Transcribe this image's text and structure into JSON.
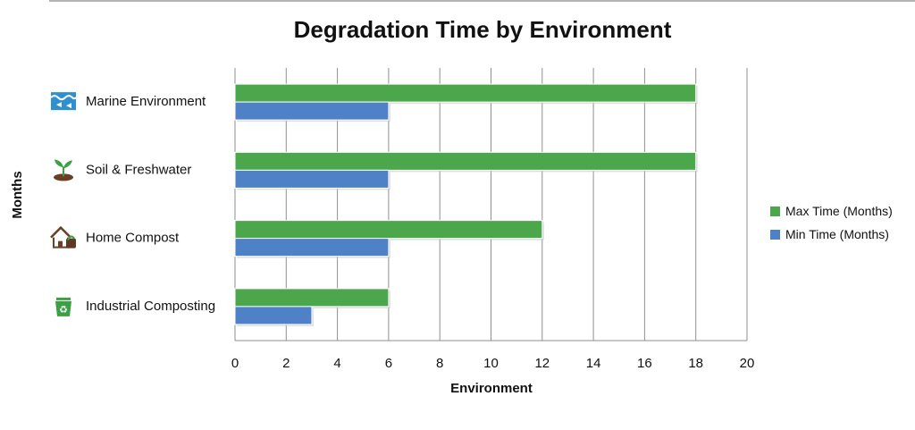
{
  "chart_data": {
    "type": "bar",
    "orientation": "horizontal",
    "title": "Degradation Time by Environment",
    "xlabel": "Environment",
    "ylabel": "Months",
    "xlim": [
      0,
      20
    ],
    "xticks": [
      0,
      2,
      4,
      6,
      8,
      10,
      12,
      14,
      16,
      18,
      20
    ],
    "grid": true,
    "legend_position": "right",
    "categories": [
      {
        "label": "Marine Environment",
        "icon": "marine-icon"
      },
      {
        "label": "Soil & Freshwater",
        "icon": "seedling-icon"
      },
      {
        "label": "Home Compost",
        "icon": "home-compost-icon"
      },
      {
        "label": "Industrial Composting",
        "icon": "recycle-bin-icon"
      }
    ],
    "series": [
      {
        "name": "Max Time (Months)",
        "color": "#4ca64c",
        "values": [
          18,
          18,
          12,
          6
        ]
      },
      {
        "name": "Min Time (Months)",
        "color": "#4f81c7",
        "values": [
          6,
          6,
          6,
          3
        ]
      }
    ]
  }
}
